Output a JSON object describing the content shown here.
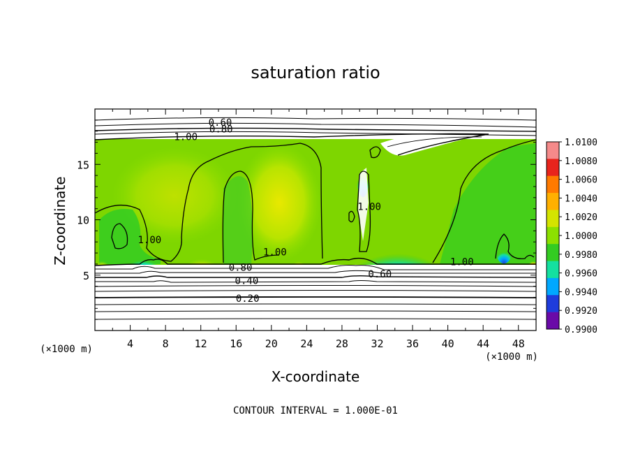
{
  "chart_data": {
    "type": "heatmap",
    "title": "saturation ratio",
    "xlabel": "X-coordinate",
    "ylabel": "Z-coordinate",
    "x_unit": "(×1000 m)",
    "xlim": [
      0,
      50
    ],
    "ylim": [
      0,
      20
    ],
    "x_ticks": [
      4,
      8,
      12,
      16,
      20,
      24,
      28,
      32,
      36,
      40,
      44,
      48
    ],
    "y_ticks": [
      5,
      10,
      15
    ],
    "colorbar": {
      "levels": [
        "1.0100",
        "1.0080",
        "1.0060",
        "1.0040",
        "1.0020",
        "1.0000",
        "0.9980",
        "0.9960",
        "0.9940",
        "0.9920",
        "0.9900"
      ],
      "colors": [
        "#f58a8a",
        "#e8241c",
        "#ff7a00",
        "#ffb000",
        "#d4e400",
        "#8ce000",
        "#33cc22",
        "#14e0a0",
        "#00a8ff",
        "#1e3cdc",
        "#6a0aa8"
      ]
    },
    "contour_labels": [
      {
        "label": "0.60",
        "x": 14.2,
        "y": 18.8
      },
      {
        "label": "0.80",
        "x": 14.3,
        "y": 18.2
      },
      {
        "label": "1.00",
        "x": 10.3,
        "y": 17.5
      },
      {
        "label": "1.00",
        "x": 6.2,
        "y": 8.2
      },
      {
        "label": "1.00",
        "x": 20.4,
        "y": 7.1
      },
      {
        "label": "1.00",
        "x": 31.1,
        "y": 11.2
      },
      {
        "label": "1.00",
        "x": 41.6,
        "y": 6.2
      },
      {
        "label": "0.80",
        "x": 16.5,
        "y": 5.7
      },
      {
        "label": "0.60",
        "x": 32.3,
        "y": 5.1
      },
      {
        "label": "0.40",
        "x": 17.2,
        "y": 4.5
      },
      {
        "label": "0.20",
        "x": 17.3,
        "y": 2.9
      }
    ],
    "grid": false
  },
  "footer": "CONTOUR INTERVAL =  1.000E-01"
}
